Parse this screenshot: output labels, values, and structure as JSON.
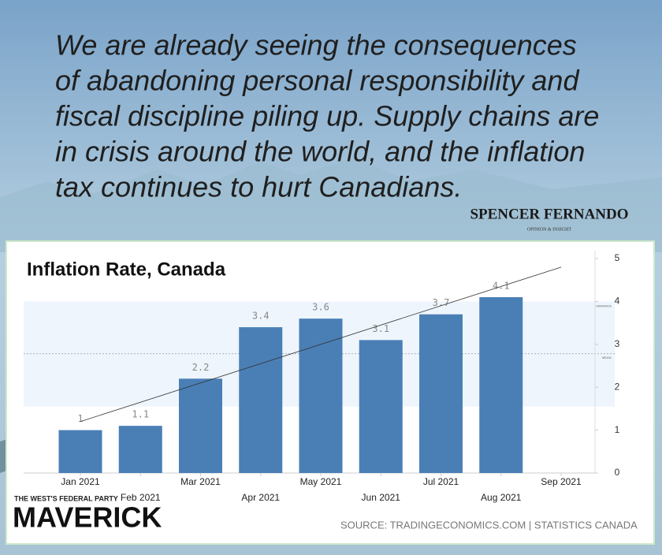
{
  "quote": [
    "We are already seeing the consequences",
    "of abandoning personal responsibility and",
    "fiscal discipline piling up. Supply chains are",
    "in crisis around the world, and the inflation",
    "tax continues to hurt Canadians."
  ],
  "brand": {
    "name": "SPENCER FERNANDO",
    "tagline": "OPINION & INSIGHT"
  },
  "party": {
    "tagline": "THE WEST'S FEDERAL PARTY",
    "name": "MAVERICK"
  },
  "source": "SOURCE: TRADINGECONOMICS.COM | STATISTICS CANADA",
  "chart_data": {
    "type": "bar",
    "title": "Inflation Rate, Canada",
    "categories": [
      "Jan 2021",
      "Feb 2021",
      "Mar 2021",
      "Apr 2021",
      "May 2021",
      "Jun 2021",
      "Jul 2021",
      "Aug 2021",
      "Sep 2021"
    ],
    "values": [
      1,
      1.1,
      2.2,
      3.4,
      3.6,
      3.1,
      3.7,
      4.1,
      null
    ],
    "color": "#4a7fb6",
    "ylim": [
      0,
      5
    ],
    "yticks": [
      0,
      1,
      2,
      3,
      4,
      5
    ],
    "variance_band": [
      1.55,
      4
    ],
    "band_label": "VARIANCE",
    "mean": 2.78,
    "mean_label": "MEAN",
    "trendline": [
      1.2,
      4.8
    ]
  }
}
